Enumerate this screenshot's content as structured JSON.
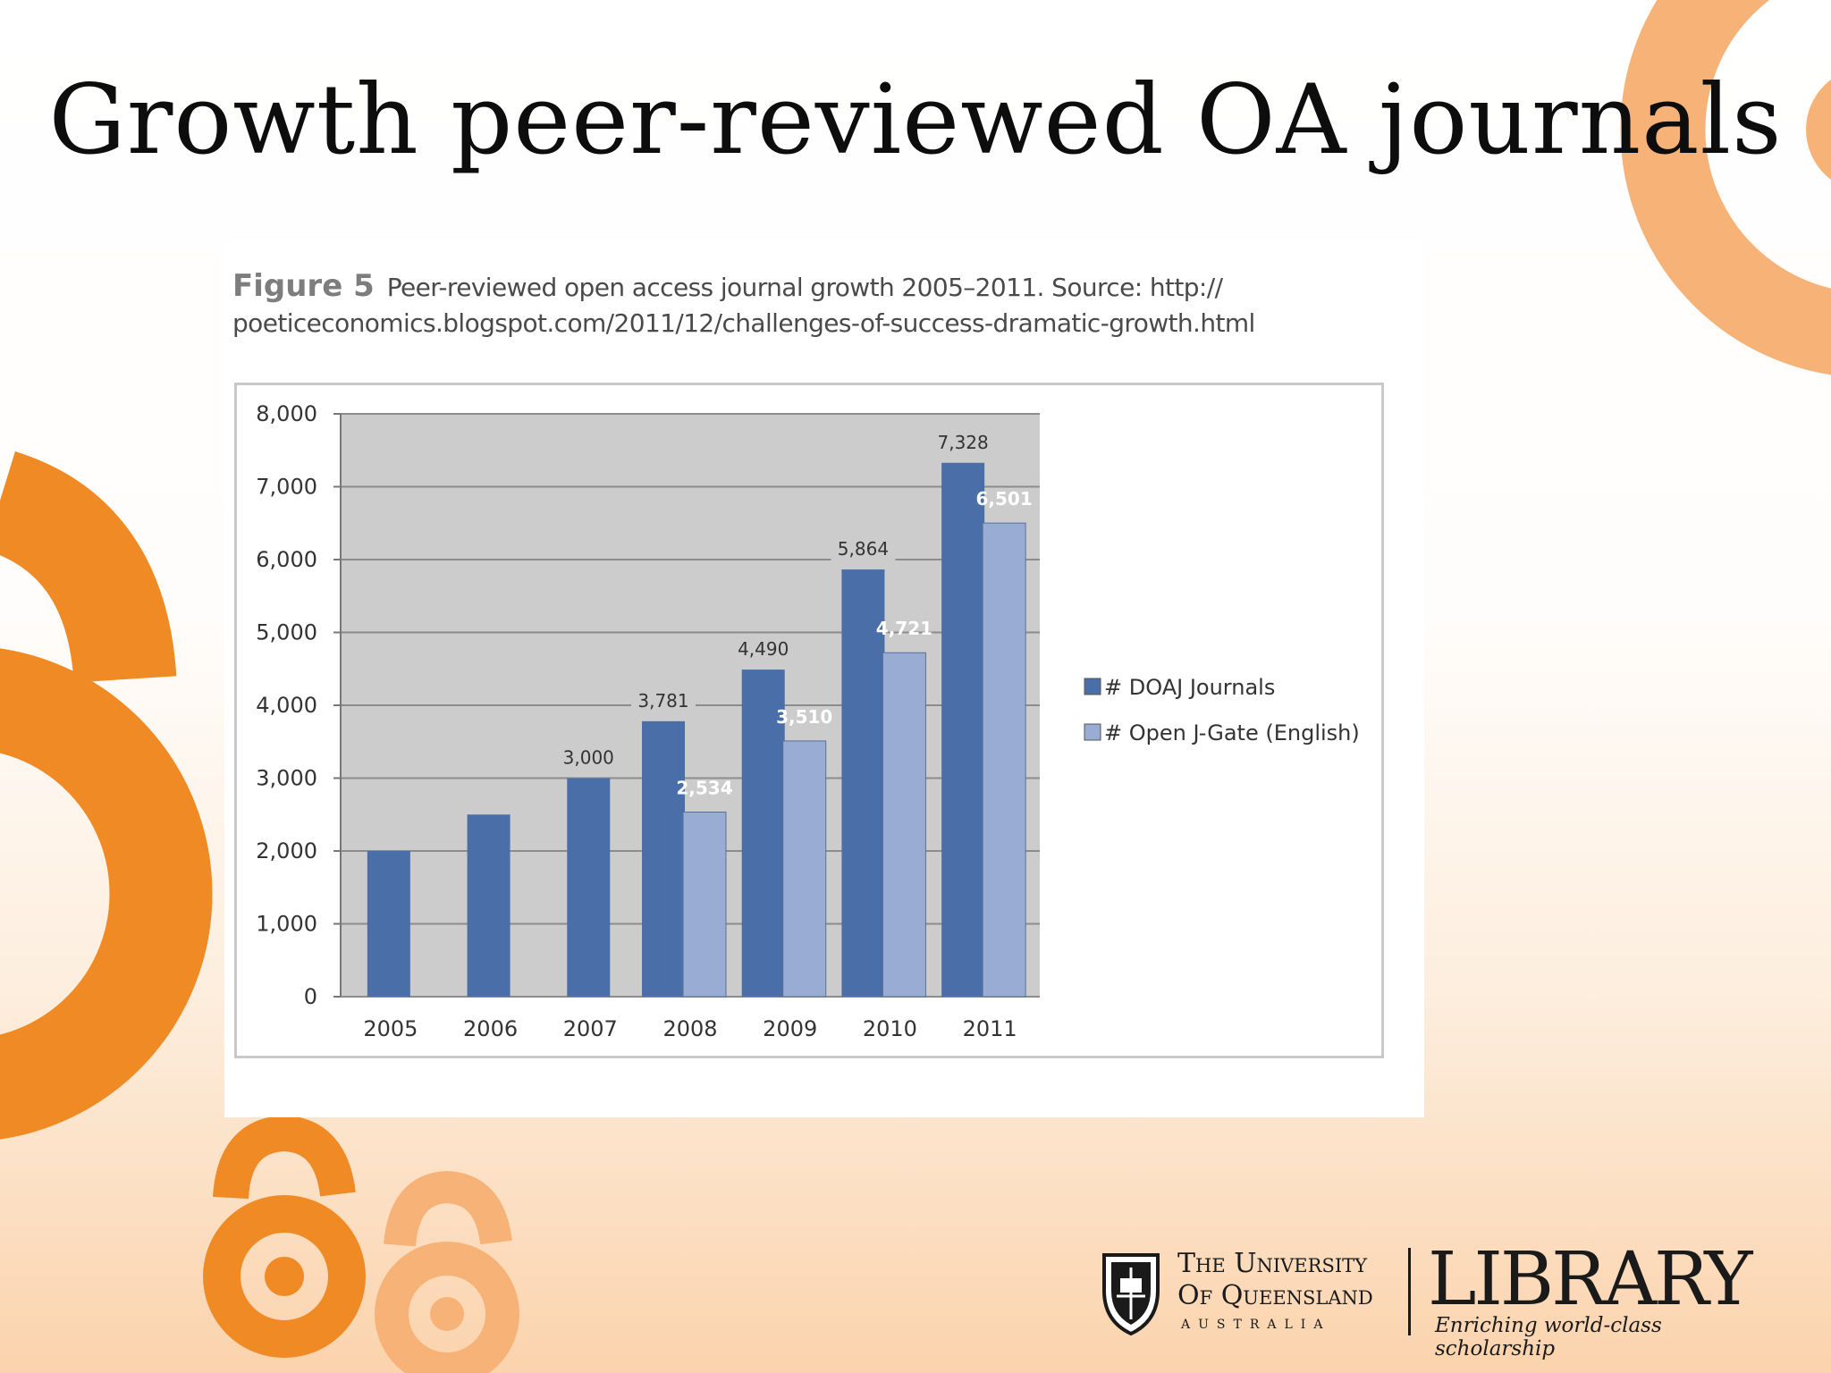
{
  "slide": {
    "title": "Growth peer-reviewed OA journals"
  },
  "figure": {
    "label": "Figure 5",
    "caption_line1": "Peer-reviewed open access journal growth 2005–2011. Source: http://",
    "caption_line2": "poeticeconomics.blogspot.com/2011/12/challenges-of-success-dramatic-growth.html"
  },
  "chart_data": {
    "type": "bar",
    "title": "",
    "xlabel": "",
    "ylabel": "",
    "categories": [
      "2005",
      "2006",
      "2007",
      "2008",
      "2009",
      "2010",
      "2011"
    ],
    "series": [
      {
        "name": "# DOAJ Journals",
        "color": "#4a6fa8",
        "values": [
          2000,
          2500,
          3000,
          3781,
          4490,
          5864,
          7328
        ],
        "data_labels": [
          null,
          null,
          "3,000",
          "3,781",
          "4,490",
          "5,864",
          "7,328"
        ]
      },
      {
        "name": "# Open J-Gate (English)",
        "color": "#98acd4",
        "values": [
          null,
          null,
          null,
          2534,
          3510,
          4721,
          6501
        ],
        "data_labels": [
          null,
          null,
          null,
          "2,534",
          "3,510",
          "4,721",
          "6,501"
        ]
      }
    ],
    "ylim": [
      0,
      8000
    ],
    "yticks": [
      "0",
      "1,000",
      "2,000",
      "3,000",
      "4,000",
      "5,000",
      "6,000",
      "7,000",
      "8,000"
    ],
    "grid": true,
    "legend": "right",
    "plot_background": "#cccccc"
  },
  "footer": {
    "university_line1": "The University",
    "university_line2": "Of Queensland",
    "university_line3": "AUSTRALIA",
    "library": "LIBRARY",
    "tagline": "Enriching world-class scholarship"
  },
  "colors": {
    "accent_orange": "#f08a24",
    "light_orange": "#f7b377",
    "doaj_blue": "#4a6fa8",
    "jgate_blue": "#98acd4"
  }
}
